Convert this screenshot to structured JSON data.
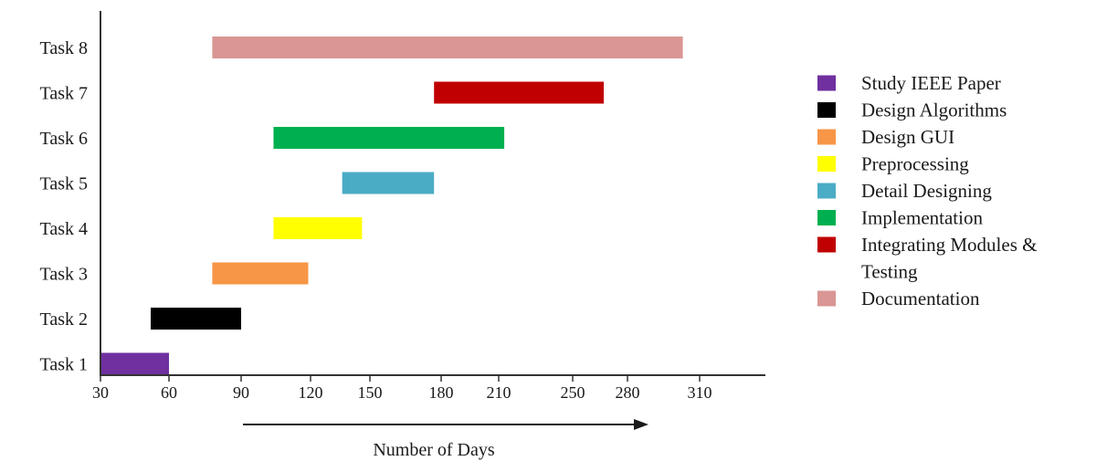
{
  "chart_data": {
    "type": "bar",
    "orientation": "horizontal",
    "title": "",
    "xlabel": "Number of Days",
    "ylabel": "",
    "grid": false,
    "legend_position": "right",
    "categories": [
      "Task 1",
      "Task 2",
      "Task 3",
      "Task 4",
      "Task 5",
      "Task 6",
      "Task 7",
      "Task 8"
    ],
    "x_ticks": [
      "30",
      "60",
      "90",
      "120",
      "150",
      "180",
      "210",
      "250",
      "280",
      "310"
    ],
    "series": [
      {
        "name": "Study IEEE Paper",
        "category": "Task 1",
        "start": 30,
        "end": 60,
        "color": "#7030a0"
      },
      {
        "name": "Design Algorithms",
        "category": "Task 2",
        "start": 52,
        "end": 90,
        "color": "#000000"
      },
      {
        "name": "Design GUI",
        "category": "Task 3",
        "start": 78,
        "end": 119,
        "color": "#f79646"
      },
      {
        "name": "Preprocessing",
        "category": "Task 4",
        "start": 104,
        "end": 146,
        "color": "#ffff00"
      },
      {
        "name": "Detail Designing",
        "category": "Task 5",
        "start": 136,
        "end": 177,
        "color": "#4bacc6"
      },
      {
        "name": "Implementation",
        "category": "Task 6",
        "start": 104,
        "end": 213,
        "color": "#00b050"
      },
      {
        "name": "Integrating Modules & Testing",
        "category": "Task 7",
        "start": 177,
        "end": 267,
        "color": "#c00000"
      },
      {
        "name": "Documentation",
        "category": "Task 8",
        "start": 78,
        "end": 303,
        "color": "#d99694"
      }
    ],
    "legend": [
      {
        "lines": [
          "Study IEEE Paper"
        ],
        "color": "#7030a0"
      },
      {
        "lines": [
          "Design Algorithms"
        ],
        "color": "#000000"
      },
      {
        "lines": [
          "Design GUI"
        ],
        "color": "#f79646"
      },
      {
        "lines": [
          "Preprocessing"
        ],
        "color": "#ffff00"
      },
      {
        "lines": [
          "Detail Designing"
        ],
        "color": "#4bacc6"
      },
      {
        "lines": [
          "Implementation"
        ],
        "color": "#00b050"
      },
      {
        "lines": [
          "Integrating Modules &",
          "Testing"
        ],
        "color": "#c00000"
      },
      {
        "lines": [
          "Documentation"
        ],
        "color": "#d99694"
      }
    ]
  }
}
